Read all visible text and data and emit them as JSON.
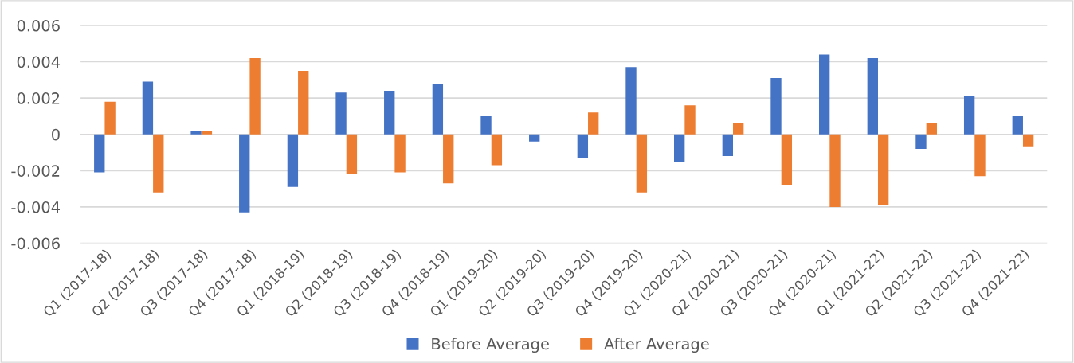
{
  "chart_data": {
    "type": "bar",
    "categories": [
      "Q1 (2017-18)",
      "Q2 (2017-18)",
      "Q3 (2017-18)",
      "Q4 (2017-18)",
      "Q1 (2018-19)",
      "Q2 (2018-19)",
      "Q3 (2018-19)",
      "Q4 (2018-19)",
      "Q1 (2019-20)",
      "Q2 (2019-20)",
      "Q3 (2019-20)",
      "Q4 (2019-20)",
      "Q1 (2020-21)",
      "Q2 (2020-21)",
      "Q3 (2020-21)",
      "Q4 (2020-21)",
      "Q1 (2021-22)",
      "Q2 (2021-22)",
      "Q3 (2021-22)",
      "Q4 (2021-22)"
    ],
    "series": [
      {
        "name": "Before Average",
        "color": "#4472c4",
        "values": [
          -0.0021,
          0.0029,
          0.0002,
          -0.0043,
          -0.0029,
          0.0023,
          0.0024,
          0.0028,
          0.001,
          -0.0004,
          -0.0013,
          0.0037,
          -0.0015,
          -0.0012,
          0.0031,
          0.0044,
          0.0042,
          -0.0008,
          0.0021,
          0.001
        ]
      },
      {
        "name": "After Average",
        "color": "#ed7d31",
        "values": [
          0.0018,
          -0.0032,
          0.0002,
          0.0042,
          0.0035,
          -0.0022,
          -0.0021,
          -0.0027,
          -0.0017,
          0.0,
          0.0012,
          -0.0032,
          0.0016,
          0.0006,
          -0.0028,
          -0.004,
          -0.0039,
          0.0006,
          -0.0023,
          -0.0007
        ]
      }
    ],
    "ylim": [
      -0.006,
      0.006
    ],
    "yticks": [
      -0.006,
      -0.004,
      -0.002,
      0,
      0.002,
      0.004,
      0.006
    ],
    "grid": "y",
    "legend": "bottom"
  }
}
